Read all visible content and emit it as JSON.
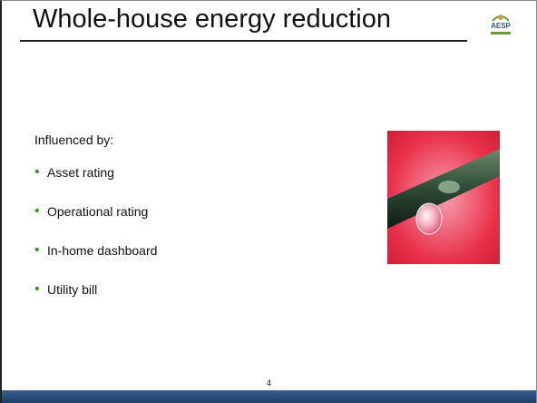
{
  "header": {
    "title": "Whole-house energy reduction",
    "logo": "AESP"
  },
  "body": {
    "intro": "Influenced by:",
    "bullets": [
      "Asset rating",
      "Operational rating",
      "In-home dashboard",
      "Utility bill"
    ]
  },
  "footer": {
    "page_number": "4"
  }
}
